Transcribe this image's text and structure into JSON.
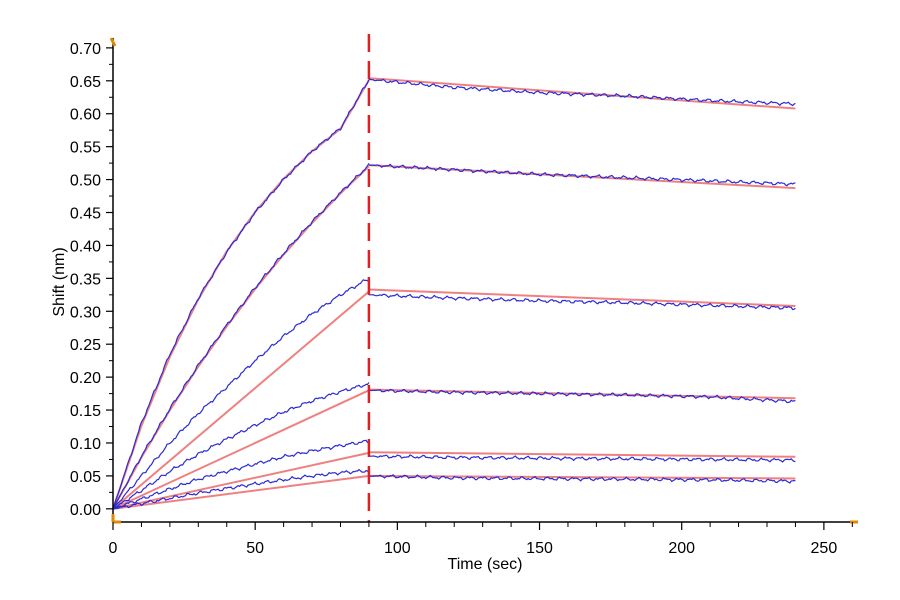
{
  "chart_data": {
    "type": "line",
    "title": "",
    "xlabel": "Time (sec)",
    "ylabel": "Shift (nm)",
    "xlim": [
      0,
      262
    ],
    "ylim": [
      -0.02,
      0.715
    ],
    "x_ticks": [
      0,
      50,
      100,
      150,
      200,
      250
    ],
    "y_ticks": [
      0.0,
      0.05,
      0.1,
      0.15,
      0.2,
      0.25,
      0.3,
      0.35,
      0.4,
      0.45,
      0.5,
      0.55,
      0.6,
      0.65,
      0.7
    ],
    "grid": false,
    "legend": "none",
    "association_end_marker_x": 90,
    "colors": {
      "measured": "#2a2ad8",
      "fit": "#f08080",
      "marker": "#e02020",
      "axis": "#000000",
      "axis_end": "#e08a00"
    },
    "series": [
      {
        "type": "fit",
        "assoc": [
          [
            0,
            0.0
          ],
          [
            10,
            0.126
          ],
          [
            20,
            0.231
          ],
          [
            30,
            0.318
          ],
          [
            40,
            0.391
          ],
          [
            50,
            0.451
          ],
          [
            60,
            0.501
          ],
          [
            70,
            0.543
          ],
          [
            80,
            0.577
          ],
          [
            90,
            0.651
          ]
        ],
        "dissoc": [
          [
            90,
            0.654
          ],
          [
            240,
            0.608
          ]
        ]
      },
      {
        "type": "fit",
        "assoc": [
          [
            0,
            0.0
          ],
          [
            10,
            0.078
          ],
          [
            20,
            0.15
          ],
          [
            30,
            0.216
          ],
          [
            40,
            0.277
          ],
          [
            50,
            0.334
          ],
          [
            60,
            0.386
          ],
          [
            70,
            0.434
          ],
          [
            80,
            0.479
          ],
          [
            90,
            0.52
          ]
        ],
        "dissoc": [
          [
            90,
            0.522
          ],
          [
            240,
            0.487
          ]
        ]
      },
      {
        "type": "fit",
        "assoc": [
          [
            0,
            0.0
          ],
          [
            90,
            0.33
          ]
        ],
        "dissoc": [
          [
            90,
            0.333
          ],
          [
            240,
            0.308
          ]
        ]
      },
      {
        "type": "fit",
        "assoc": [
          [
            0,
            0.0
          ],
          [
            90,
            0.18
          ]
        ],
        "dissoc": [
          [
            90,
            0.181
          ],
          [
            240,
            0.168
          ]
        ]
      },
      {
        "type": "fit",
        "assoc": [
          [
            0,
            0.0
          ],
          [
            90,
            0.085
          ]
        ],
        "dissoc": [
          [
            90,
            0.086
          ],
          [
            240,
            0.079
          ]
        ]
      },
      {
        "type": "fit",
        "assoc": [
          [
            0,
            0.0
          ],
          [
            90,
            0.05
          ]
        ],
        "dissoc": [
          [
            90,
            0.05
          ],
          [
            240,
            0.046
          ]
        ]
      },
      {
        "type": "measured",
        "assoc": [
          [
            0,
            0.0
          ],
          [
            10,
            0.13
          ],
          [
            20,
            0.235
          ],
          [
            30,
            0.32
          ],
          [
            40,
            0.39
          ],
          [
            50,
            0.45
          ],
          [
            60,
            0.5
          ],
          [
            70,
            0.543
          ],
          [
            80,
            0.578
          ],
          [
            90,
            0.652
          ]
        ],
        "dissoc": [
          [
            90,
            0.652
          ],
          [
            120,
            0.64
          ],
          [
            150,
            0.632
          ],
          [
            180,
            0.627
          ],
          [
            210,
            0.62
          ],
          [
            240,
            0.615
          ]
        ]
      },
      {
        "type": "measured",
        "assoc": [
          [
            0,
            0.0
          ],
          [
            10,
            0.08
          ],
          [
            20,
            0.152
          ],
          [
            30,
            0.218
          ],
          [
            40,
            0.279
          ],
          [
            50,
            0.336
          ],
          [
            60,
            0.388
          ],
          [
            70,
            0.436
          ],
          [
            80,
            0.48
          ],
          [
            90,
            0.522
          ]
        ],
        "dissoc": [
          [
            90,
            0.522
          ],
          [
            120,
            0.515
          ],
          [
            150,
            0.508
          ],
          [
            180,
            0.503
          ],
          [
            210,
            0.498
          ],
          [
            240,
            0.493
          ]
        ]
      },
      {
        "type": "measured",
        "assoc": [
          [
            0,
            0.0
          ],
          [
            10,
            0.05
          ],
          [
            20,
            0.1
          ],
          [
            30,
            0.145
          ],
          [
            40,
            0.185
          ],
          [
            50,
            0.225
          ],
          [
            60,
            0.262
          ],
          [
            70,
            0.296
          ],
          [
            80,
            0.325
          ],
          [
            90,
            0.35
          ]
        ],
        "dissoc": [
          [
            90,
            0.325
          ],
          [
            120,
            0.32
          ],
          [
            150,
            0.316
          ],
          [
            180,
            0.313
          ],
          [
            210,
            0.309
          ],
          [
            240,
            0.305
          ]
        ]
      },
      {
        "type": "measured",
        "assoc": [
          [
            0,
            0.0
          ],
          [
            10,
            0.028
          ],
          [
            20,
            0.057
          ],
          [
            30,
            0.083
          ],
          [
            40,
            0.106
          ],
          [
            50,
            0.127
          ],
          [
            60,
            0.147
          ],
          [
            70,
            0.164
          ],
          [
            80,
            0.178
          ],
          [
            90,
            0.19
          ]
        ],
        "dissoc": [
          [
            90,
            0.18
          ],
          [
            120,
            0.177
          ],
          [
            150,
            0.175
          ],
          [
            180,
            0.173
          ],
          [
            210,
            0.17
          ],
          [
            240,
            0.163
          ]
        ]
      },
      {
        "type": "measured",
        "assoc": [
          [
            0,
            0.0
          ],
          [
            10,
            0.015
          ],
          [
            20,
            0.03
          ],
          [
            30,
            0.045
          ],
          [
            40,
            0.057
          ],
          [
            50,
            0.068
          ],
          [
            60,
            0.079
          ],
          [
            70,
            0.088
          ],
          [
            80,
            0.096
          ],
          [
            90,
            0.103
          ]
        ],
        "dissoc": [
          [
            90,
            0.08
          ],
          [
            120,
            0.078
          ],
          [
            150,
            0.077
          ],
          [
            180,
            0.076
          ],
          [
            210,
            0.075
          ],
          [
            240,
            0.074
          ]
        ]
      },
      {
        "type": "measured",
        "assoc": [
          [
            0,
            0.0
          ],
          [
            10,
            0.008
          ],
          [
            20,
            0.016
          ],
          [
            30,
            0.024
          ],
          [
            40,
            0.031
          ],
          [
            50,
            0.038
          ],
          [
            60,
            0.044
          ],
          [
            70,
            0.05
          ],
          [
            80,
            0.055
          ],
          [
            90,
            0.058
          ]
        ],
        "dissoc": [
          [
            90,
            0.05
          ],
          [
            120,
            0.047
          ],
          [
            150,
            0.046
          ],
          [
            180,
            0.045
          ],
          [
            210,
            0.044
          ],
          [
            240,
            0.042
          ]
        ]
      }
    ]
  }
}
